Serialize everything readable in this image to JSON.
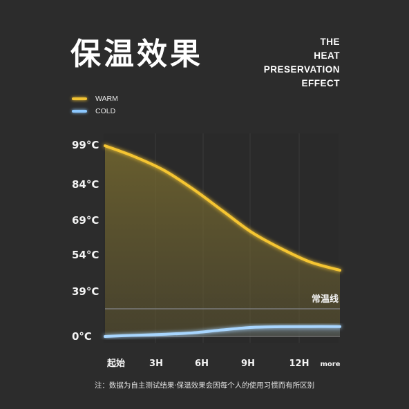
{
  "title": "保温效果",
  "english_title": [
    "THE",
    "HEAT",
    "PRESERVATION",
    "EFFECT"
  ],
  "legend": [
    {
      "name": "WARM",
      "color": "#f1c232"
    },
    {
      "name": "COLD",
      "color": "#8cc8ff"
    }
  ],
  "note": "注：数据为自主测试结果·保温效果会因每个人的使用习惯而有所区别",
  "chart_data": {
    "type": "area",
    "x_labels": [
      "起始",
      "3H",
      "6H",
      "9H",
      "12H",
      "more"
    ],
    "y_labels": [
      "99°C",
      "84°C",
      "69°C",
      "54°C",
      "39°C",
      "0°C"
    ],
    "reference_line": {
      "label": "常温线"
    },
    "series": [
      {
        "name": "WARM",
        "color": "#f1c232",
        "points": [
          [
            0,
            99
          ],
          [
            1,
            95
          ],
          [
            2,
            90
          ],
          [
            3,
            83
          ],
          [
            4,
            75
          ],
          [
            5,
            67
          ],
          [
            6,
            61
          ],
          [
            7,
            56
          ],
          [
            8,
            53
          ]
        ]
      },
      {
        "name": "COLD",
        "color": "#8cc8ff",
        "points": [
          [
            0,
            0
          ],
          [
            1,
            1.6
          ],
          [
            2,
            3
          ],
          [
            3,
            5
          ],
          [
            4,
            9
          ],
          [
            5,
            12.5
          ],
          [
            6,
            13.4
          ],
          [
            7,
            13.6
          ],
          [
            8,
            13.6
          ]
        ]
      }
    ]
  }
}
